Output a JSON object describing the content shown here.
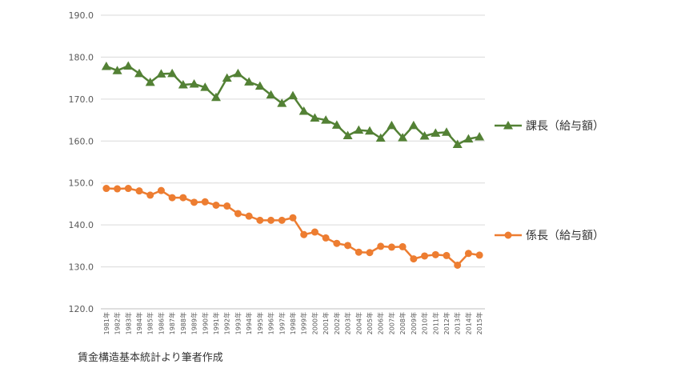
{
  "chart_data": {
    "type": "line",
    "title": "",
    "xlabel": "",
    "ylabel": "",
    "ylim": [
      120,
      190
    ],
    "yticks": [
      "120.0",
      "130.0",
      "140.0",
      "150.0",
      "160.0",
      "170.0",
      "180.0",
      "190.0"
    ],
    "grid": true,
    "legend_position": "right",
    "x": [
      "1981年",
      "1982年",
      "1983年",
      "1984年",
      "1985年",
      "1986年",
      "1987年",
      "1988年",
      "1989年",
      "1990年",
      "1991年",
      "1992年",
      "1993年",
      "1994年",
      "1995年",
      "1996年",
      "1997年",
      "1998年",
      "1999年",
      "2000年",
      "2001年",
      "2002年",
      "2003年",
      "2004年",
      "2005年",
      "2006年",
      "2007年",
      "2008年",
      "2009年",
      "2010年",
      "2011年",
      "2012年",
      "2013年",
      "2014年",
      "2015年"
    ],
    "series": [
      {
        "name": "課長（給与額）",
        "color": "#538135",
        "marker": "triangle",
        "values": [
          177.8,
          176.8,
          177.9,
          176.1,
          174.0,
          176.0,
          176.1,
          173.4,
          173.6,
          172.8,
          170.4,
          175.0,
          176.1,
          174.1,
          173.1,
          171.0,
          169.0,
          170.8,
          167.1,
          165.5,
          165.0,
          163.8,
          161.3,
          162.6,
          162.4,
          160.7,
          163.7,
          160.8,
          163.7,
          161.2,
          161.9,
          162.1,
          159.2,
          160.5,
          161.0
        ]
      },
      {
        "name": "係長（給与額）",
        "color": "#ED7D31",
        "marker": "circle",
        "values": [
          148.7,
          148.6,
          148.7,
          148.1,
          147.1,
          148.2,
          146.5,
          146.5,
          145.4,
          145.5,
          144.7,
          144.5,
          142.7,
          142.1,
          141.1,
          141.1,
          141.1,
          141.7,
          137.7,
          138.3,
          136.9,
          135.6,
          135.1,
          133.5,
          133.4,
          134.9,
          134.7,
          134.8,
          131.9,
          132.6,
          132.9,
          132.7,
          130.4,
          133.2,
          132.8
        ]
      }
    ]
  },
  "source": "賃金構造基本統計より筆者作成"
}
